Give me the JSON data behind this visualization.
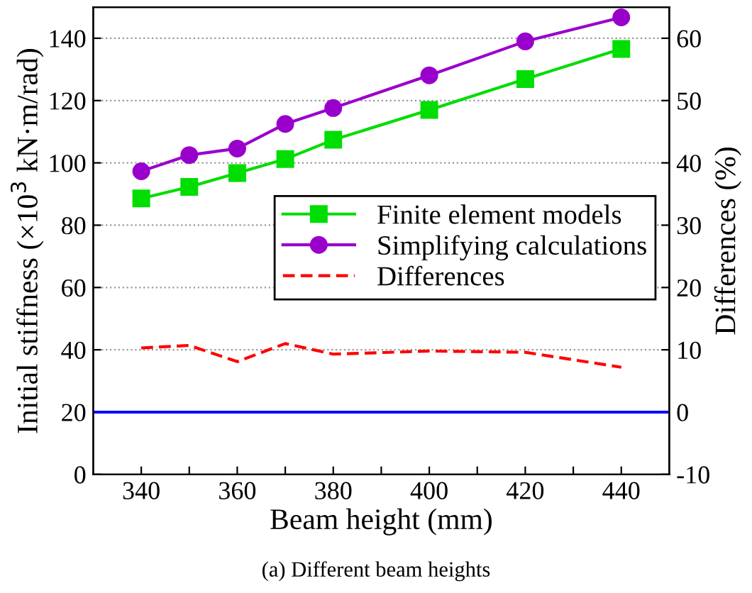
{
  "chart_data": {
    "type": "line",
    "xlabel": "Beam height (mm)",
    "ylabel": "Initial stiffness (×10$^{3}$ kN·m/rad)",
    "y2label": "Differences (%)",
    "x": [
      340,
      350,
      360,
      370,
      380,
      400,
      420,
      440
    ],
    "series": [
      {
        "name": "Finite element models",
        "color": "#00dd00",
        "marker": "square",
        "line_style": "solid",
        "values": [
          88.6,
          92.3,
          96.7,
          101.2,
          107.4,
          117.0,
          126.9,
          136.6
        ]
      },
      {
        "name": "Simplifying calculations",
        "color": "#9900cc",
        "marker": "circle",
        "line_style": "solid",
        "values": [
          97.3,
          102.5,
          104.6,
          112.5,
          117.6,
          128.1,
          139.0,
          146.7
        ]
      },
      {
        "name": "Differences",
        "color": "#ff0000",
        "marker": "none",
        "line_style": "dashed",
        "axis": "y2",
        "values": [
          10.3,
          10.7,
          8.1,
          11.0,
          9.3,
          9.8,
          9.6,
          7.2
        ]
      }
    ],
    "xlim": [
      330,
      450
    ],
    "xticks": [
      340,
      {
        "value": 350,
        "label": null
      },
      360,
      {
        "value": 370,
        "label": null
      },
      380,
      {
        "value": 390,
        "label": null
      },
      400,
      {
        "value": 410,
        "label": null
      },
      420,
      {
        "value": 430,
        "label": null
      },
      440
    ],
    "ylim": [
      0,
      150
    ],
    "yticks": [
      0,
      20,
      40,
      60,
      80,
      100,
      120,
      140
    ],
    "y2lim": [
      -10,
      65
    ],
    "y2ticks": [
      -10,
      0,
      10,
      20,
      30,
      40,
      50,
      60
    ],
    "ref_lines": [
      {
        "axis": "y2",
        "value": 0,
        "color": "#0000ff",
        "line_style": "solid"
      }
    ],
    "grid": "y",
    "legend": "right",
    "annotations": [
      "(a) Different beam heights"
    ]
  }
}
